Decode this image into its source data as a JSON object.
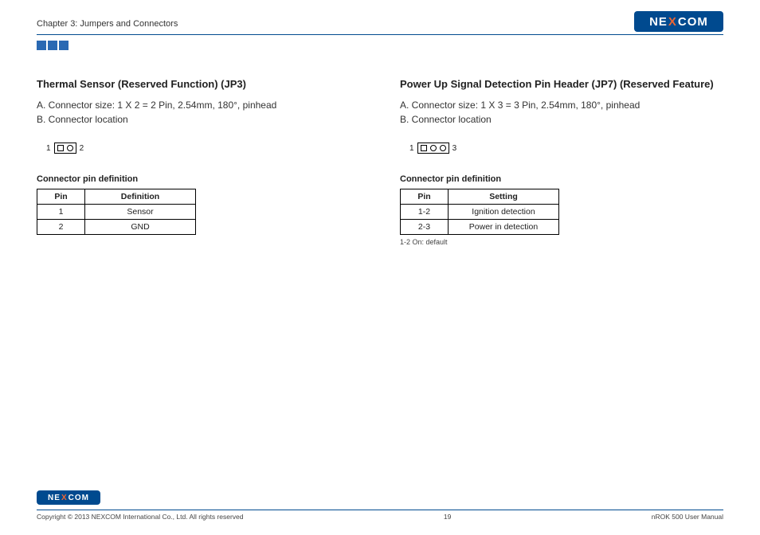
{
  "header": {
    "chapter": "Chapter 3: Jumpers and Connectors",
    "logo_pre": "NE",
    "logo_x": "X",
    "logo_post": "COM"
  },
  "left": {
    "title": "Thermal Sensor (Reserved Function) (JP3)",
    "line_a": "A. Connector size: 1 X 2 = 2 Pin, 2.54mm, 180°, pinhead",
    "line_b": "B. Connector location",
    "diagram": {
      "left_label": "1",
      "right_label": "2",
      "pin_count": 2
    },
    "table": {
      "caption": "Connector pin definition",
      "columns": [
        "Pin",
        "Definition"
      ],
      "rows": [
        [
          "1",
          "Sensor"
        ],
        [
          "2",
          "GND"
        ]
      ]
    }
  },
  "right": {
    "title": "Power Up Signal Detection Pin Header (JP7) (Reserved Feature)",
    "line_a": "A. Connector size: 1 X 3 = 3 Pin, 2.54mm, 180°, pinhead",
    "line_b": "B. Connector location",
    "diagram": {
      "left_label": "1",
      "right_label": "3",
      "pin_count": 3
    },
    "table": {
      "caption": "Connector pin definition",
      "columns": [
        "Pin",
        "Setting"
      ],
      "rows": [
        [
          "1-2",
          "Ignition detection"
        ],
        [
          "2-3",
          "Power in detection"
        ]
      ]
    },
    "footnote": "1-2 On: default"
  },
  "footer": {
    "copyright": "Copyright © 2013 NEXCOM International Co., Ltd. All rights reserved",
    "page": "19",
    "manual": "nROK 500 User Manual"
  },
  "style": {
    "brand_color": "#004a8f",
    "accent_color": "#e63"
  }
}
